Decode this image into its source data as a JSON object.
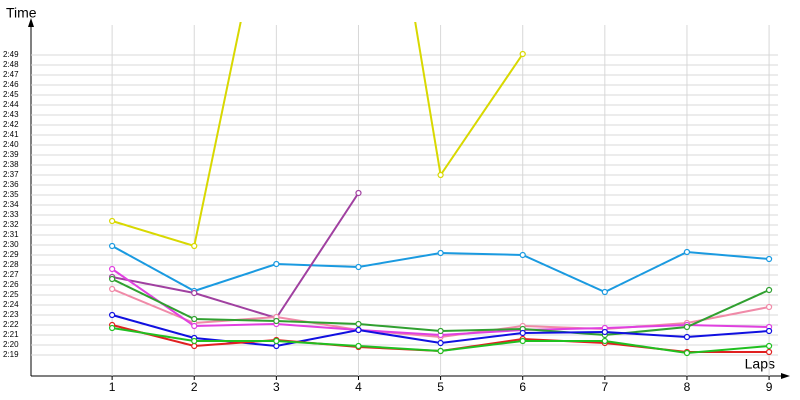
{
  "chart_data": {
    "type": "line",
    "xlabel": "Laps",
    "ylabel": "Time",
    "x": [
      1,
      2,
      3,
      4,
      5,
      6,
      7,
      8,
      9
    ],
    "xlim": [
      0,
      9.2
    ],
    "xticks": [
      1,
      2,
      3,
      4,
      5,
      6,
      7,
      8,
      9
    ],
    "ylim": [
      137,
      172
    ],
    "yticks": [
      {
        "value": 139,
        "label": "2:19"
      },
      {
        "value": 140,
        "label": "2:20"
      },
      {
        "value": 141,
        "label": "2:21"
      },
      {
        "value": 142,
        "label": "2:22"
      },
      {
        "value": 143,
        "label": "2:23"
      },
      {
        "value": 144,
        "label": "2:24"
      },
      {
        "value": 145,
        "label": "2:25"
      },
      {
        "value": 146,
        "label": "2:26"
      },
      {
        "value": 147,
        "label": "2:27"
      },
      {
        "value": 148,
        "label": "2:28"
      },
      {
        "value": 149,
        "label": "2:29"
      },
      {
        "value": 150,
        "label": "2:30"
      },
      {
        "value": 151,
        "label": "2:31"
      },
      {
        "value": 152,
        "label": "2:32"
      },
      {
        "value": 153,
        "label": "2:33"
      },
      {
        "value": 154,
        "label": "2:34"
      },
      {
        "value": 155,
        "label": "2:35"
      },
      {
        "value": 156,
        "label": "2:36"
      },
      {
        "value": 157,
        "label": "2:37"
      },
      {
        "value": 158,
        "label": "2:38"
      },
      {
        "value": 159,
        "label": "2:39"
      },
      {
        "value": 160,
        "label": "2:40"
      },
      {
        "value": 161,
        "label": "2:41"
      },
      {
        "value": 162,
        "label": "2:42"
      },
      {
        "value": 163,
        "label": "2:43"
      },
      {
        "value": 164,
        "label": "2:44"
      },
      {
        "value": 165,
        "label": "2:45"
      },
      {
        "value": 166,
        "label": "2:46"
      },
      {
        "value": 167,
        "label": "2:47"
      },
      {
        "value": 168,
        "label": "2:48"
      },
      {
        "value": 169,
        "label": "2:49"
      }
    ],
    "grid": true,
    "series": [
      {
        "color": "#d8d800",
        "values": [
          152.4,
          149.9,
          189.5,
          206.5,
          157,
          169.1,
          null,
          null,
          null
        ]
      },
      {
        "color": "#1a9ae0",
        "values": [
          149.9,
          145.4,
          148.1,
          147.8,
          149.2,
          149,
          145.3,
          149.3,
          148.6
        ]
      },
      {
        "color": "#a040a0",
        "values": [
          146.8,
          145.2,
          142.7,
          155.2,
          null,
          null,
          null,
          null,
          null
        ]
      },
      {
        "color": "#f08aa8",
        "values": [
          145.6,
          142.2,
          142.8,
          141.5,
          140.8,
          141.9,
          141.6,
          142.2,
          143.8
        ]
      },
      {
        "color": "#e040e0",
        "values": [
          147.6,
          141.9,
          142.1,
          141.5,
          141,
          141.5,
          141.7,
          142,
          141.8
        ]
      },
      {
        "color": "#30a030",
        "values": [
          146.6,
          142.6,
          142.4,
          142.1,
          141.4,
          141.6,
          141,
          141.8,
          145.5
        ]
      },
      {
        "color": "#1010e0",
        "values": [
          143,
          140.7,
          139.9,
          141.5,
          140.2,
          141.2,
          141.3,
          140.8,
          141.4
        ]
      },
      {
        "color": "#e02020",
        "values": [
          142,
          139.9,
          140.5,
          139.8,
          139.4,
          140.6,
          140.2,
          139.3,
          139.3
        ]
      },
      {
        "color": "#20c020",
        "values": [
          141.7,
          140.4,
          140.4,
          139.9,
          139.4,
          140.4,
          140.4,
          139.2,
          139.9
        ]
      }
    ]
  }
}
